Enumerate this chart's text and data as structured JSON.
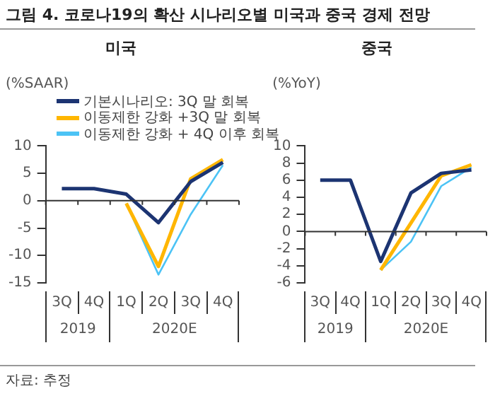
{
  "chart_data": [
    {
      "type": "line",
      "title": "그림 4. 코로나19의 확산 시나리오별 미국과 중국 경제 전망",
      "subtitle": "미국",
      "ylabel": "(%SAAR)",
      "categories": [
        "3Q",
        "4Q",
        "1Q",
        "2Q",
        "3Q",
        "4Q"
      ],
      "series": [
        {
          "name": "기본시나리오: 3Q 말 회복",
          "color": "#1c3472",
          "values": [
            2.2,
            2.2,
            1.2,
            -4,
            3.5,
            7
          ]
        },
        {
          "name": "이동제한 강화 +3Q 말 회복",
          "color": "#ffb600",
          "values": [
            null,
            null,
            -0.5,
            -12,
            4,
            7.5
          ]
        },
        {
          "name": "이동제한 강화 + 4Q 이후 회복",
          "color": "#4cc3f5",
          "values": [
            null,
            null,
            -0.5,
            -13.5,
            -2.5,
            6.5
          ]
        }
      ],
      "ylim": [
        -15,
        10
      ],
      "yticks": [
        -15,
        -10,
        -5,
        0,
        5,
        10
      ],
      "legend": "top right",
      "marker": "none",
      "annotations": [
        "2019",
        "2020E",
        "자료: 추정"
      ]
    },
    {
      "type": "line",
      "subtitle": "중국",
      "ylabel": "(%YoY)",
      "categories": [
        "3Q",
        "4Q",
        "1Q",
        "2Q",
        "3Q",
        "4Q"
      ],
      "series": [
        {
          "color": "#1c3472",
          "values": [
            6,
            6,
            -3.5,
            4.5,
            6.8,
            7.2
          ]
        },
        {
          "color": "#ffb600",
          "values": [
            null,
            null,
            -4.5,
            1,
            6.5,
            7.8
          ]
        },
        {
          "color": "#4cc3f5",
          "values": [
            null,
            null,
            -4.5,
            -1.2,
            5.3,
            7.5
          ]
        }
      ],
      "ylim": [
        -6,
        10
      ],
      "yticks": [
        -6,
        -4,
        -2,
        0,
        2,
        4,
        6,
        8,
        10
      ],
      "marker": "none",
      "annotations": [
        "2019",
        "2020E"
      ]
    }
  ]
}
